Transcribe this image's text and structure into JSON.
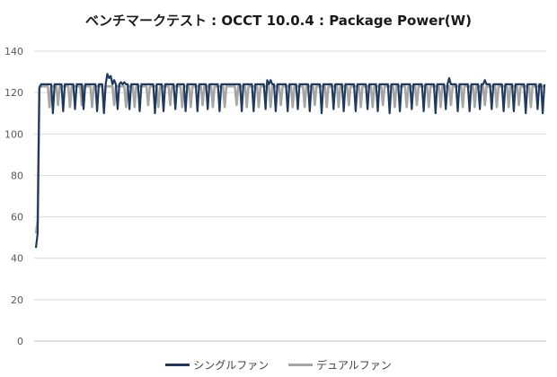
{
  "chart_data": {
    "type": "line",
    "title": "ベンチマークテスト : OCCT 10.0.4 : Package Power(W)",
    "xlabel": "",
    "ylabel": "",
    "ylim": [
      0,
      140
    ],
    "yticks": [
      0,
      20,
      40,
      60,
      80,
      100,
      120,
      140
    ],
    "grid": true,
    "legend_position": "bottom",
    "x_points": 300,
    "series": [
      {
        "name": "シングルファン",
        "color": "#1f3a5f",
        "ramp": [
          45,
          52,
          122
        ],
        "base": 124,
        "dips": [
          [
            10,
            110
          ],
          [
            16,
            111
          ],
          [
            23,
            112
          ],
          [
            28,
            112
          ],
          [
            36,
            111
          ],
          [
            43,
            111
          ],
          [
            48,
            112
          ],
          [
            55,
            112
          ],
          [
            61,
            111
          ],
          [
            70,
            110
          ],
          [
            75,
            111
          ],
          [
            82,
            112
          ],
          [
            88,
            111
          ],
          [
            95,
            111
          ],
          [
            101,
            112
          ],
          [
            108,
            111
          ],
          [
            114,
            112
          ],
          [
            121,
            111
          ],
          [
            128,
            111
          ],
          [
            135,
            112
          ],
          [
            141,
            111
          ],
          [
            148,
            111
          ],
          [
            154,
            112
          ],
          [
            161,
            111
          ],
          [
            168,
            110
          ],
          [
            175,
            112
          ],
          [
            181,
            111
          ],
          [
            188,
            111
          ],
          [
            195,
            112
          ],
          [
            201,
            111
          ],
          [
            208,
            110
          ],
          [
            214,
            111
          ],
          [
            221,
            112
          ],
          [
            228,
            111
          ],
          [
            235,
            110
          ],
          [
            241,
            112
          ],
          [
            248,
            111
          ],
          [
            255,
            111
          ],
          [
            261,
            112
          ],
          [
            268,
            112
          ],
          [
            275,
            111
          ],
          [
            281,
            111
          ],
          [
            288,
            110
          ],
          [
            295,
            112
          ],
          [
            298,
            110
          ]
        ],
        "spikes": [
          [
            40,
            110
          ],
          [
            42,
            129
          ],
          [
            43,
            127
          ],
          [
            44,
            128
          ],
          [
            46,
            126
          ],
          [
            50,
            125
          ],
          [
            52,
            125
          ],
          [
            114,
            124
          ],
          [
            136,
            126
          ],
          [
            138,
            126
          ],
          [
            243,
            127
          ],
          [
            264,
            126
          ]
        ]
      },
      {
        "name": "デュアルファン",
        "color": "#a6a6a6",
        "ramp": [
          52,
          58,
          123
        ],
        "base": 123,
        "dips": [
          [
            8,
            113
          ],
          [
            13,
            114
          ],
          [
            20,
            113
          ],
          [
            27,
            114
          ],
          [
            33,
            113
          ],
          [
            40,
            113
          ],
          [
            46,
            114
          ],
          [
            53,
            113
          ],
          [
            58,
            113
          ],
          [
            66,
            114
          ],
          [
            72,
            113
          ],
          [
            79,
            114
          ],
          [
            86,
            113
          ],
          [
            91,
            113
          ],
          [
            98,
            114
          ],
          [
            104,
            113
          ],
          [
            111,
            113
          ],
          [
            118,
            114
          ],
          [
            124,
            113
          ],
          [
            131,
            113
          ],
          [
            138,
            113
          ],
          [
            144,
            114
          ],
          [
            151,
            113
          ],
          [
            158,
            113
          ],
          [
            164,
            114
          ],
          [
            171,
            113
          ],
          [
            178,
            113
          ],
          [
            184,
            114
          ],
          [
            191,
            113
          ],
          [
            198,
            113
          ],
          [
            204,
            114
          ],
          [
            211,
            113
          ],
          [
            218,
            113
          ],
          [
            224,
            114
          ],
          [
            231,
            113
          ],
          [
            238,
            113
          ],
          [
            244,
            114
          ],
          [
            251,
            113
          ],
          [
            258,
            113
          ],
          [
            264,
            114
          ],
          [
            271,
            113
          ],
          [
            278,
            113
          ],
          [
            284,
            114
          ],
          [
            291,
            113
          ]
        ],
        "spikes": []
      }
    ]
  }
}
